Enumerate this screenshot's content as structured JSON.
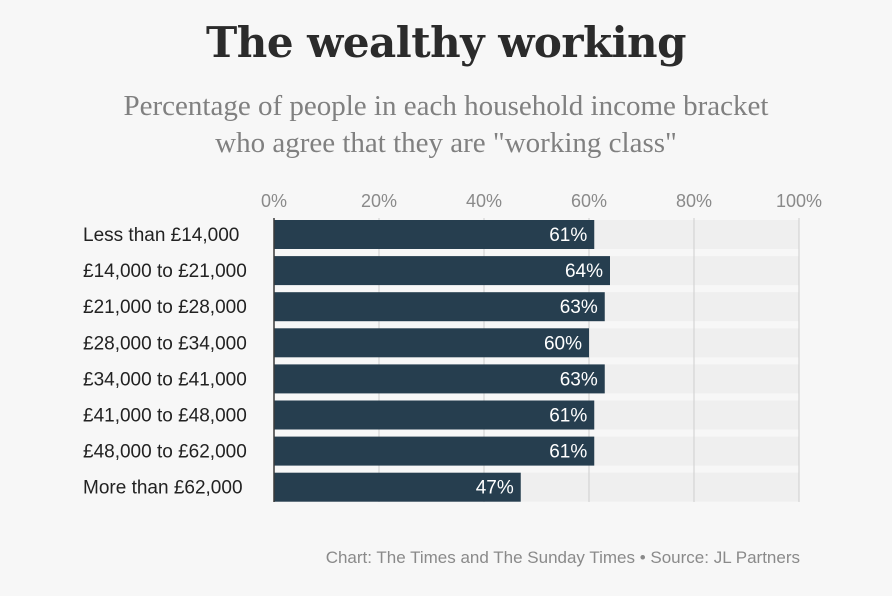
{
  "chart_data": {
    "type": "bar",
    "orientation": "horizontal",
    "title": "The wealthy working",
    "subtitle_lines": [
      "Percentage of people in each household income bracket",
      "who agree that they are \"working class\""
    ],
    "categories": [
      "Less than £14,000",
      "£14,000 to £21,000",
      "£21,000 to £28,000",
      "£28,000 to £34,000",
      "£34,000 to £41,000",
      "£41,000 to £48,000",
      "£48,000 to £62,000",
      "More than £62,000"
    ],
    "values": [
      61,
      64,
      63,
      60,
      63,
      61,
      61,
      47
    ],
    "data_labels": [
      "61%",
      "64%",
      "63%",
      "60%",
      "63%",
      "61%",
      "61%",
      "47%"
    ],
    "xlim": [
      0,
      100
    ],
    "x_ticks": [
      0,
      20,
      40,
      60,
      80,
      100
    ],
    "x_tick_labels": [
      "0%",
      "20%",
      "40%",
      "60%",
      "80%",
      "100%"
    ],
    "x_axis_position": "top",
    "grid": true,
    "legend": "none",
    "bar_color": "#263e4f",
    "track_color": "#efefef",
    "grid_color": "#d4d4d4",
    "source": "Chart: The Times and The Sunday Times • Source: JL Partners"
  }
}
